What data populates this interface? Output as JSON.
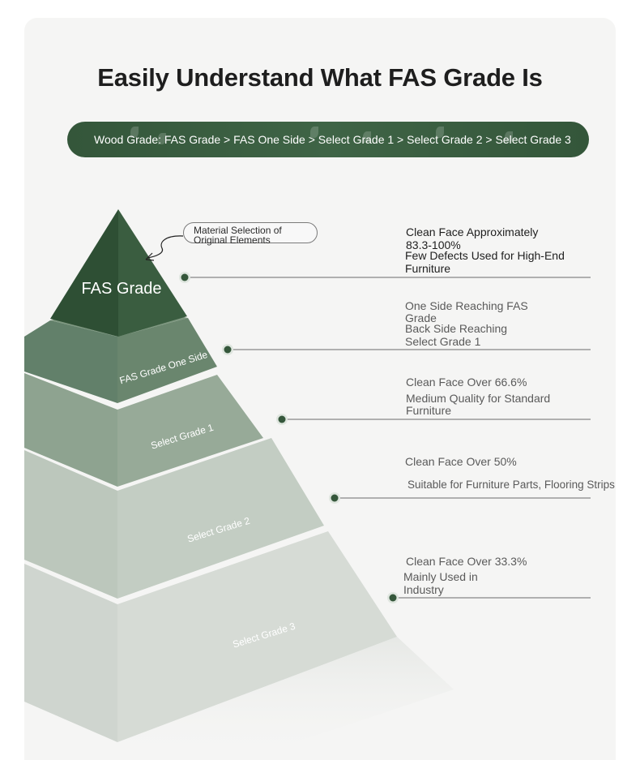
{
  "title": "Easily Understand What FAS Grade Is",
  "banner": {
    "text": "Wood Grade: FAS Grade > FAS One Side > Select Grade 1 > Select Grade 2 > Select Grade 3"
  },
  "callout": {
    "line1": "Material Selection of",
    "line2": "Original Elements"
  },
  "tiers": [
    {
      "name": "FAS Grade",
      "color": "#35573b",
      "desc_line1": "Clean Face Approximately",
      "desc_line2": "83.3-100%",
      "desc_line3": "Few Defects Used for High-End",
      "desc_line4": "Furniture"
    },
    {
      "name": "FAS Grade One Side",
      "color": "#6a866e",
      "desc_line1": "One Side Reaching FAS",
      "desc_line2": "Grade",
      "desc_line3": "Back Side Reaching",
      "desc_line4": "Select Grade 1"
    },
    {
      "name": "Select Grade 1",
      "color": "#97aa98",
      "desc_line1": "Clean Face Over 66.6%",
      "desc_line2": "Medium Quality for Standard",
      "desc_line3": "Furniture"
    },
    {
      "name": "Select Grade 2",
      "color": "#c3cdc3",
      "desc_line1": "Clean Face Over 50%",
      "desc_line2": "Suitable for Furniture Parts, Flooring Strips"
    },
    {
      "name": "Select Grade 3",
      "color": "#d6dbd5",
      "desc_line1": "Clean Face Over 33.3%",
      "desc_line2": "Mainly Used in",
      "desc_line3": "Industry"
    }
  ]
}
